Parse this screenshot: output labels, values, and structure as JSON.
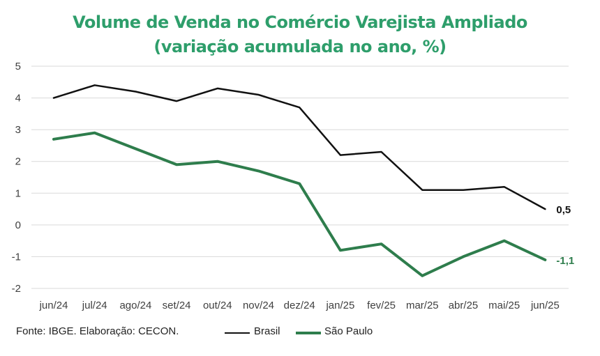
{
  "title_line1": "Volume de Venda no Comércio Varejista Ampliado",
  "title_line2": "(variação acumulada no ano, %)",
  "source": "Fonte: IBGE. Elaboração: CECON.",
  "colors": {
    "title": "#2e9e6b",
    "brasil": "#111111",
    "sao_paulo": "#2e7d4c",
    "grid": "#d9d9d9"
  },
  "chart_data": {
    "type": "line",
    "categories": [
      "jun/24",
      "jul/24",
      "ago/24",
      "set/24",
      "out/24",
      "nov/24",
      "dez/24",
      "jan/25",
      "fev/25",
      "mar/25",
      "abr/25",
      "mai/25",
      "jun/25"
    ],
    "series": [
      {
        "name": "Brasil",
        "values": [
          4.0,
          4.4,
          4.2,
          3.9,
          4.3,
          4.1,
          3.7,
          2.2,
          2.3,
          1.1,
          1.1,
          1.2,
          0.5
        ],
        "end_label": "0,5"
      },
      {
        "name": "São Paulo",
        "values": [
          2.7,
          2.9,
          2.4,
          1.9,
          2.0,
          1.7,
          1.3,
          -0.8,
          -0.6,
          -1.6,
          -1.0,
          -0.5,
          -1.1
        ],
        "end_label": "-1,1"
      }
    ],
    "ylim": [
      -2,
      5
    ],
    "yticks": [
      "5",
      "4",
      "3",
      "2",
      "1",
      "0",
      "-1",
      "-2"
    ],
    "grid": true,
    "legend_position": "bottom"
  }
}
